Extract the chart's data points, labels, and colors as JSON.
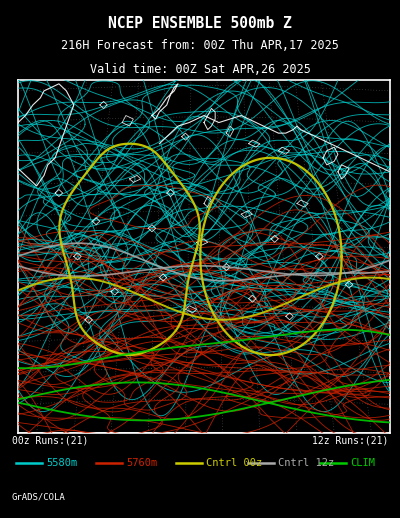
{
  "title_line1": "NCEP ENSEMBLE 500mb Z",
  "title_line2": "216H Forecast from: 00Z Thu APR,17 2025",
  "title_line3": "Valid time: 00Z Sat APR,26 2025",
  "bg_color": "#000000",
  "map_bg": "#000000",
  "border_color": "#ffffff",
  "label_bottom_left": "00z Runs:(21)",
  "label_bottom_right": "12z Runs:(21)",
  "credit": "GrADS/COLA",
  "legend_items": [
    {
      "label": "5580m",
      "color": "#00cccc",
      "lw": 1.8
    },
    {
      "label": "5760m",
      "color": "#cc2200",
      "lw": 1.8
    },
    {
      "label": "Cntrl 00z",
      "color": "#cccc00",
      "lw": 1.8
    },
    {
      "label": "Cntrl 12z",
      "color": "#aaaaaa",
      "lw": 1.8
    },
    {
      "label": "CLIM",
      "color": "#00cc00",
      "lw": 1.8
    }
  ],
  "cyan_color": "#00cccc",
  "red_color": "#cc2200",
  "yellow_color": "#cccc00",
  "gray_color": "#aaaaaa",
  "green_color": "#00cc00",
  "white_color": "#ffffff",
  "dot_gray": "#808080",
  "seed": 7,
  "n_cyan_open": 55,
  "n_cyan_closed": 18,
  "n_red_open": 50,
  "n_red_closed": 8,
  "n_yellow_closed": 2,
  "n_yellow_open": 1,
  "n_gray_lines": 2,
  "n_green_lines": 3
}
